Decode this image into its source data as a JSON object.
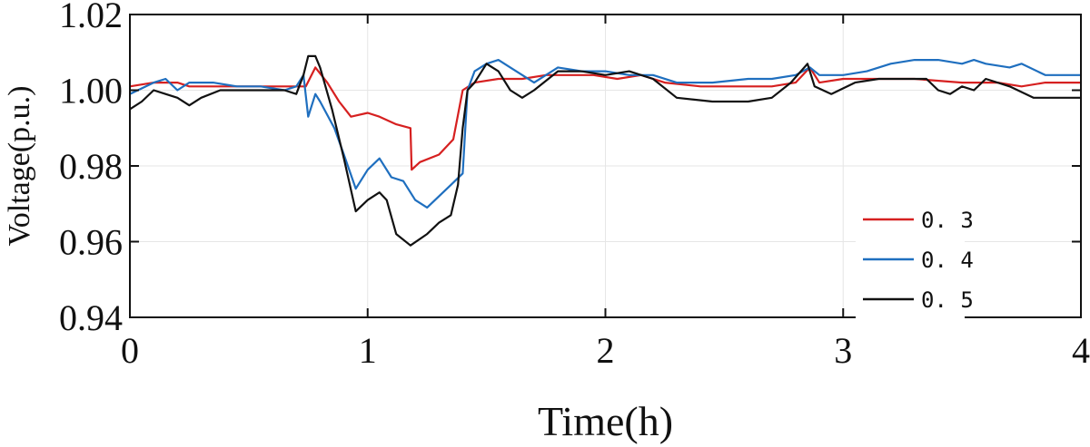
{
  "chart_data": {
    "type": "line",
    "title": "",
    "xlabel": "Time(h)",
    "ylabel": "Voltage(p.u.)",
    "xlim": [
      0,
      4
    ],
    "ylim": [
      0.94,
      1.02
    ],
    "xticks": [
      "0",
      "1",
      "2",
      "3",
      "4"
    ],
    "yticks": [
      "0.94",
      "0.96",
      "0.98",
      "1.00",
      "1.02"
    ],
    "grid": true,
    "legend_position": "bottom-right",
    "series": [
      {
        "name": "0. 3",
        "color": "#d62020",
        "points": [
          [
            0,
            1.001
          ],
          [
            0.1,
            1.002
          ],
          [
            0.2,
            1.002
          ],
          [
            0.25,
            1.001
          ],
          [
            0.4,
            1.001
          ],
          [
            0.55,
            1.001
          ],
          [
            0.7,
            1.001
          ],
          [
            0.74,
            1.001
          ],
          [
            0.78,
            1.006
          ],
          [
            0.83,
            1.002
          ],
          [
            0.88,
            0.997
          ],
          [
            0.93,
            0.993
          ],
          [
            1.0,
            0.994
          ],
          [
            1.05,
            0.993
          ],
          [
            1.12,
            0.991
          ],
          [
            1.18,
            0.99
          ],
          [
            1.185,
            0.979
          ],
          [
            1.22,
            0.981
          ],
          [
            1.3,
            0.983
          ],
          [
            1.36,
            0.987
          ],
          [
            1.4,
            1.0
          ],
          [
            1.45,
            1.002
          ],
          [
            1.55,
            1.003
          ],
          [
            1.65,
            1.003
          ],
          [
            1.75,
            1.004
          ],
          [
            1.85,
            1.004
          ],
          [
            1.95,
            1.004
          ],
          [
            2.05,
            1.003
          ],
          [
            2.15,
            1.004
          ],
          [
            2.25,
            1.002
          ],
          [
            2.4,
            1.001
          ],
          [
            2.55,
            1.001
          ],
          [
            2.7,
            1.001
          ],
          [
            2.8,
            1.002
          ],
          [
            2.86,
            1.006
          ],
          [
            2.9,
            1.002
          ],
          [
            3.0,
            1.003
          ],
          [
            3.1,
            1.003
          ],
          [
            3.3,
            1.003
          ],
          [
            3.5,
            1.002
          ],
          [
            3.65,
            1.002
          ],
          [
            3.75,
            1.001
          ],
          [
            3.85,
            1.002
          ],
          [
            4.0,
            1.002
          ]
        ]
      },
      {
        "name": "0. 4",
        "color": "#1f6fbf",
        "points": [
          [
            0,
            0.999
          ],
          [
            0.1,
            1.002
          ],
          [
            0.15,
            1.003
          ],
          [
            0.2,
            1.0
          ],
          [
            0.25,
            1.002
          ],
          [
            0.35,
            1.002
          ],
          [
            0.45,
            1.001
          ],
          [
            0.55,
            1.001
          ],
          [
            0.65,
            1.0
          ],
          [
            0.7,
            1.001
          ],
          [
            0.73,
            1.004
          ],
          [
            0.75,
            0.993
          ],
          [
            0.78,
            0.999
          ],
          [
            0.8,
            0.997
          ],
          [
            0.86,
            0.99
          ],
          [
            0.9,
            0.983
          ],
          [
            0.95,
            0.974
          ],
          [
            1.0,
            0.979
          ],
          [
            1.05,
            0.982
          ],
          [
            1.1,
            0.977
          ],
          [
            1.15,
            0.976
          ],
          [
            1.2,
            0.971
          ],
          [
            1.25,
            0.969
          ],
          [
            1.3,
            0.972
          ],
          [
            1.35,
            0.975
          ],
          [
            1.4,
            0.978
          ],
          [
            1.42,
            1.0
          ],
          [
            1.45,
            1.005
          ],
          [
            1.5,
            1.007
          ],
          [
            1.55,
            1.008
          ],
          [
            1.6,
            1.006
          ],
          [
            1.7,
            1.002
          ],
          [
            1.8,
            1.006
          ],
          [
            1.9,
            1.005
          ],
          [
            2.0,
            1.005
          ],
          [
            2.1,
            1.004
          ],
          [
            2.2,
            1.004
          ],
          [
            2.3,
            1.002
          ],
          [
            2.45,
            1.002
          ],
          [
            2.6,
            1.003
          ],
          [
            2.7,
            1.003
          ],
          [
            2.8,
            1.004
          ],
          [
            2.86,
            1.006
          ],
          [
            2.9,
            1.004
          ],
          [
            3.0,
            1.004
          ],
          [
            3.1,
            1.005
          ],
          [
            3.2,
            1.007
          ],
          [
            3.3,
            1.008
          ],
          [
            3.4,
            1.008
          ],
          [
            3.5,
            1.007
          ],
          [
            3.55,
            1.008
          ],
          [
            3.6,
            1.007
          ],
          [
            3.7,
            1.006
          ],
          [
            3.75,
            1.007
          ],
          [
            3.85,
            1.004
          ],
          [
            3.95,
            1.004
          ],
          [
            4.0,
            1.004
          ]
        ]
      },
      {
        "name": "0. 5",
        "color": "#111111",
        "points": [
          [
            0,
            0.995
          ],
          [
            0.05,
            0.997
          ],
          [
            0.1,
            1.0
          ],
          [
            0.15,
            0.999
          ],
          [
            0.2,
            0.998
          ],
          [
            0.25,
            0.996
          ],
          [
            0.3,
            0.998
          ],
          [
            0.38,
            1.0
          ],
          [
            0.45,
            1.0
          ],
          [
            0.55,
            1.0
          ],
          [
            0.65,
            1.0
          ],
          [
            0.7,
            0.999
          ],
          [
            0.73,
            1.004
          ],
          [
            0.75,
            1.009
          ],
          [
            0.78,
            1.009
          ],
          [
            0.8,
            1.006
          ],
          [
            0.85,
            0.995
          ],
          [
            0.9,
            0.982
          ],
          [
            0.95,
            0.968
          ],
          [
            1.0,
            0.971
          ],
          [
            1.05,
            0.973
          ],
          [
            1.08,
            0.971
          ],
          [
            1.12,
            0.962
          ],
          [
            1.18,
            0.959
          ],
          [
            1.25,
            0.962
          ],
          [
            1.3,
            0.965
          ],
          [
            1.35,
            0.967
          ],
          [
            1.38,
            0.975
          ],
          [
            1.4,
            0.99
          ],
          [
            1.42,
            1.0
          ],
          [
            1.45,
            1.002
          ],
          [
            1.5,
            1.007
          ],
          [
            1.55,
            1.005
          ],
          [
            1.6,
            1.0
          ],
          [
            1.65,
            0.998
          ],
          [
            1.7,
            1.0
          ],
          [
            1.8,
            1.005
          ],
          [
            1.9,
            1.005
          ],
          [
            2.0,
            1.004
          ],
          [
            2.1,
            1.005
          ],
          [
            2.2,
            1.003
          ],
          [
            2.3,
            0.998
          ],
          [
            2.45,
            0.997
          ],
          [
            2.6,
            0.997
          ],
          [
            2.7,
            0.998
          ],
          [
            2.78,
            1.002
          ],
          [
            2.85,
            1.007
          ],
          [
            2.88,
            1.001
          ],
          [
            2.95,
            0.999
          ],
          [
            3.05,
            1.002
          ],
          [
            3.15,
            1.003
          ],
          [
            3.25,
            1.003
          ],
          [
            3.35,
            1.003
          ],
          [
            3.4,
            1.0
          ],
          [
            3.45,
            0.999
          ],
          [
            3.5,
            1.001
          ],
          [
            3.55,
            1.0
          ],
          [
            3.6,
            1.003
          ],
          [
            3.7,
            1.001
          ],
          [
            3.8,
            0.998
          ],
          [
            3.9,
            0.998
          ],
          [
            4.0,
            0.998
          ]
        ]
      }
    ]
  }
}
